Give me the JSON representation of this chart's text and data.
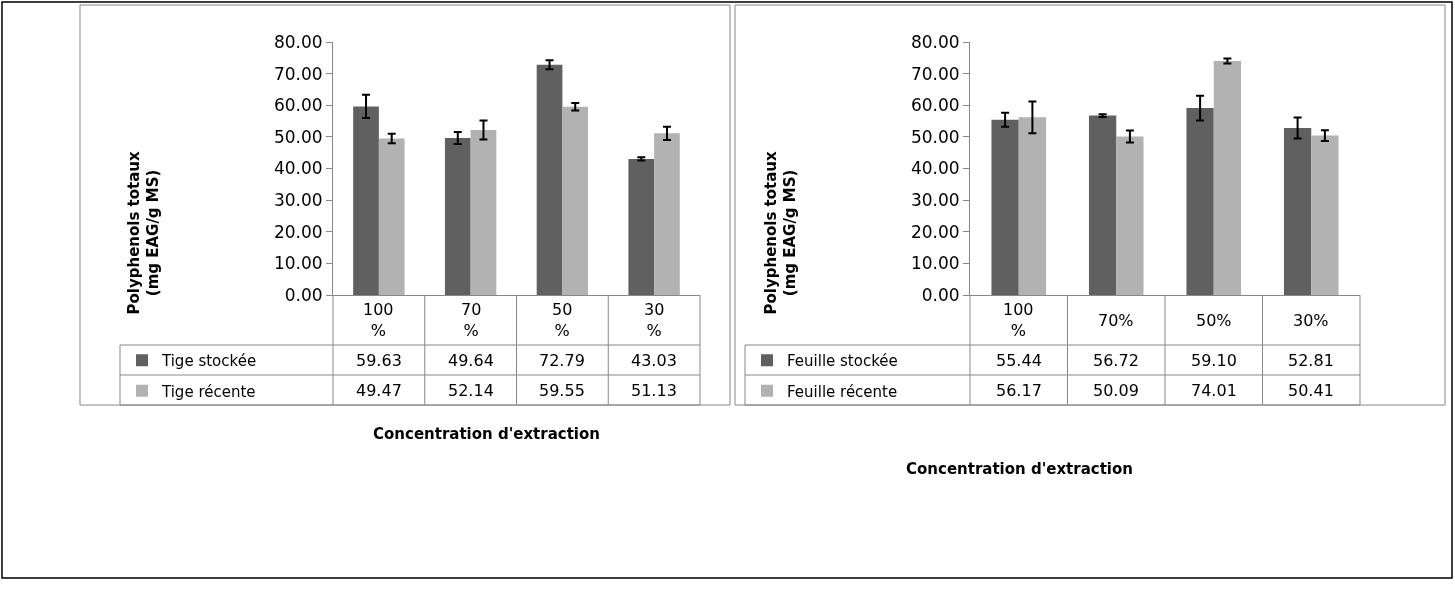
{
  "chart_data": [
    {
      "type": "bar",
      "ylabel": "Polyphenols totaux\n(mg EAG/g MS)",
      "xlabel": "Concentration d'extraction",
      "categories": [
        "100 %",
        "70 %",
        "50 %",
        "30 %"
      ],
      "series": [
        {
          "name": "Tige stockée",
          "color": "#606060",
          "values": [
            59.63,
            49.64,
            72.79,
            43.03
          ],
          "value_labels": [
            "59.63",
            "49.64",
            "72.79",
            "43.03"
          ],
          "errors": [
            3.7,
            1.9,
            1.4,
            0.5
          ]
        },
        {
          "name": "Tige récente",
          "color": "#b2b2b2",
          "values": [
            49.47,
            52.14,
            59.55,
            51.13
          ],
          "value_labels": [
            "49.47",
            "52.14",
            "59.55",
            "51.13"
          ],
          "errors": [
            1.5,
            3,
            1.2,
            2.1
          ]
        }
      ],
      "ylim": [
        0,
        80
      ],
      "yticks": [
        {
          "value": 0,
          "label": "0.00"
        },
        {
          "value": 10,
          "label": "10.00"
        },
        {
          "value": 20,
          "label": "20.00"
        },
        {
          "value": 30,
          "label": "30.00"
        },
        {
          "value": 40,
          "label": "40.00"
        },
        {
          "value": 50,
          "label": "50.00"
        },
        {
          "value": 60,
          "label": "60.00"
        },
        {
          "value": 70,
          "label": "70.00"
        },
        {
          "value": 80,
          "label": "80.00"
        }
      ],
      "legend": "bottom left"
    },
    {
      "type": "bar",
      "ylabel": "Polyphenols totaux\n(mg EAG/g MS)",
      "xlabel": "Concentration d'extraction",
      "categories": [
        "100 %",
        "70%",
        "50%",
        "30%"
      ],
      "series": [
        {
          "name": "Feuille stockée",
          "color": "#606060",
          "values": [
            55.44,
            56.72,
            59.1,
            52.81
          ],
          "value_labels": [
            "55.44",
            "56.72",
            "59.10",
            "52.81"
          ],
          "errors": [
            2.2,
            0.4,
            3.9,
            3.3
          ]
        },
        {
          "name": "Feuille récente",
          "color": "#b2b2b2",
          "values": [
            56.17,
            50.09,
            74.01,
            50.41
          ],
          "value_labels": [
            "56.17",
            "50.09",
            "74.01",
            "50.41"
          ],
          "errors": [
            5,
            1.9,
            0.8,
            1.7
          ]
        }
      ],
      "ylim": [
        0,
        80
      ],
      "yticks": [
        {
          "value": 0,
          "label": "0.00"
        },
        {
          "value": 10,
          "label": "10.00"
        },
        {
          "value": 20,
          "label": "20.00"
        },
        {
          "value": 30,
          "label": "30.00"
        },
        {
          "value": 40,
          "label": "40.00"
        },
        {
          "value": 50,
          "label": "50.00"
        },
        {
          "value": 60,
          "label": "60.00"
        },
        {
          "value": 70,
          "label": "70.00"
        },
        {
          "value": 80,
          "label": "80.00"
        }
      ],
      "legend": "bottom left"
    }
  ]
}
